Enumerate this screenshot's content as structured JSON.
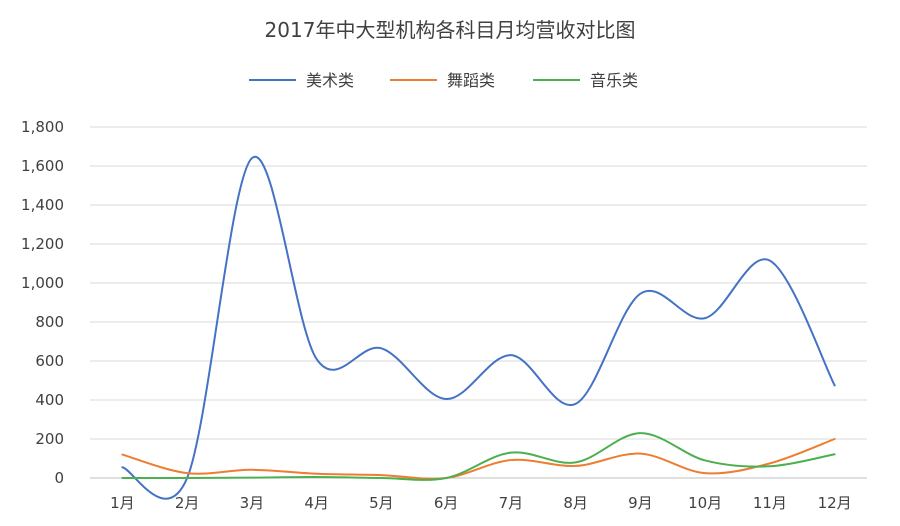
{
  "chart_data": {
    "type": "line",
    "title": "2017年中大型机构各科目月均营收对比图",
    "xlabel": "",
    "ylabel": "",
    "categories": [
      "1月",
      "2月",
      "3月",
      "4月",
      "5月",
      "6月",
      "7月",
      "8月",
      "9月",
      "10月",
      "11月",
      "12月"
    ],
    "y_ticks": [
      "0",
      "200",
      "400",
      "600",
      "800",
      "1,000",
      "1,200",
      "1,400",
      "1,600",
      "1,800"
    ],
    "ylim": [
      0,
      1800
    ],
    "grid": true,
    "legend_position": "top",
    "smooth": true,
    "series": [
      {
        "name": "美术类",
        "color": "#4472c4",
        "values": [
          55,
          0,
          1640,
          610,
          665,
          405,
          630,
          380,
          945,
          820,
          1115,
          475
        ]
      },
      {
        "name": "舞蹈类",
        "color": "#ed7d31",
        "values": [
          120,
          25,
          42,
          22,
          15,
          0,
          92,
          62,
          125,
          25,
          75,
          200
        ]
      },
      {
        "name": "音乐类",
        "color": "#4caf50",
        "values": [
          0,
          0,
          2,
          5,
          0,
          0,
          130,
          80,
          230,
          90,
          60,
          122
        ]
      }
    ]
  }
}
